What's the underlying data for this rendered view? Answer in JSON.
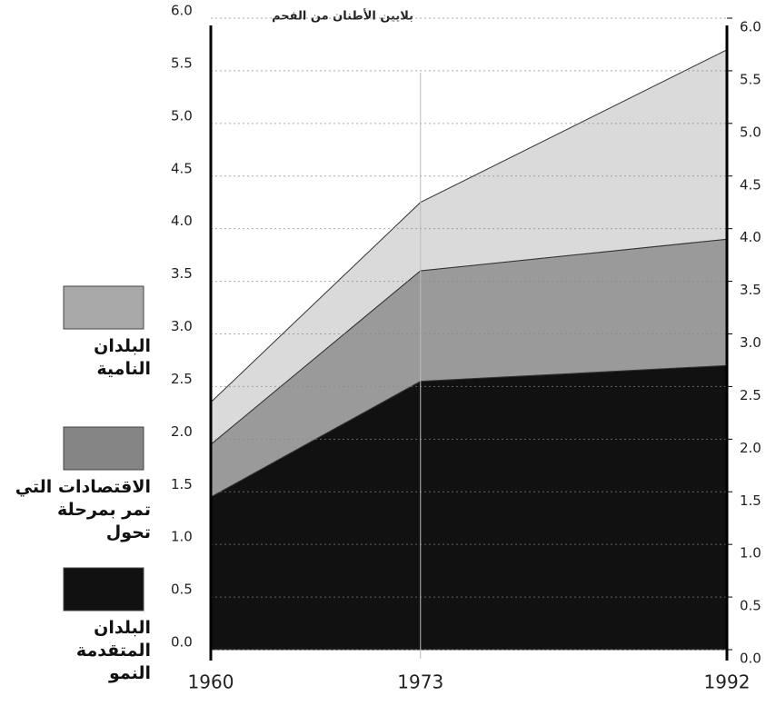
{
  "chart_data": {
    "type": "stacked_area",
    "title": "بلايين الأطنان من الفحم",
    "x": [
      1960,
      1973,
      1992
    ],
    "xlim": [
      1960,
      1992
    ],
    "xticks": [
      1960,
      1973,
      1992
    ],
    "series": [
      {
        "name": "البلدان المتقدمة النمو",
        "color": "#111111",
        "values": [
          1.45,
          2.55,
          2.7
        ]
      },
      {
        "name": "الاقتصادات التي تمر بمرحلة تحول",
        "color": "#9a9a9a",
        "values": [
          0.5,
          1.05,
          1.2
        ]
      },
      {
        "name": "البلدان النامية",
        "color": "#dadada",
        "values": [
          0.4,
          0.65,
          1.8
        ]
      }
    ],
    "ylim": [
      0,
      6
    ],
    "yticks": [
      {
        "value": 0,
        "label": "0.0"
      },
      0.5,
      {
        "value": 1,
        "label": "1.0"
      },
      1.5,
      {
        "value": 2,
        "label": "2.0"
      },
      2.5,
      {
        "value": 3,
        "label": "3.0"
      },
      3.5,
      {
        "value": 4,
        "label": "4.0"
      },
      4.5,
      {
        "value": 5,
        "label": "5.0"
      },
      5.5,
      {
        "value": 6,
        "label": "6.0"
      }
    ],
    "y2lim": [
      0,
      6
    ],
    "y2ticks": [
      {
        "value": 0,
        "label": "0.0"
      },
      0.5,
      {
        "value": 1,
        "label": "1.0"
      },
      1.5,
      {
        "value": 2,
        "label": "2.0"
      },
      2.5,
      {
        "value": 3,
        "label": "3.0"
      },
      3.5,
      {
        "value": 4,
        "label": "4.0"
      },
      4.5,
      {
        "value": 5,
        "label": "5.0"
      },
      5.5,
      {
        "value": 6,
        "label": "6.0"
      }
    ],
    "grid": true
  }
}
